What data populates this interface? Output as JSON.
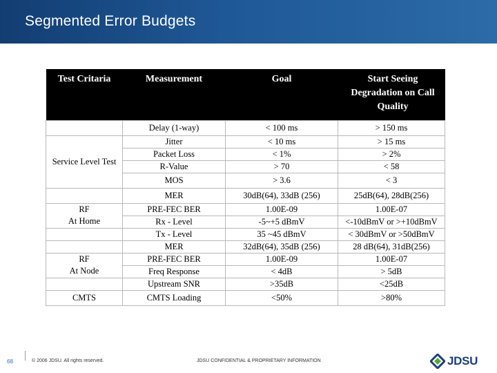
{
  "slide": {
    "title": "Segmented Error Budgets"
  },
  "table": {
    "headers": [
      "Test Critaria",
      "Measurement",
      "Goal",
      "Start Seeing Degradation on Call Quality"
    ],
    "groups": {
      "service_level_test": "Service Level Test",
      "rf_home_line1": "RF",
      "rf_home_line2": "At Home",
      "rf_node_line1": "RF",
      "rf_node_line2": "At Node",
      "cmts": "CMTS"
    },
    "rows": [
      {
        "measurement": "Delay (1-way)",
        "goal": "<  100 ms",
        "degradation": "> 150 ms"
      },
      {
        "measurement": "Jitter",
        "goal": "< 10 ms",
        "degradation": "> 15 ms"
      },
      {
        "measurement": "Packet Loss",
        "goal": "< 1%",
        "degradation": "> 2%"
      },
      {
        "measurement": "R-Value",
        "goal": "> 70",
        "degradation": "< 58"
      },
      {
        "measurement": "MOS",
        "goal": "> 3.6",
        "degradation": "< 3"
      },
      {
        "measurement": "MER",
        "goal": "30dB(64), 33dB (256)",
        "degradation": "25dB(64), 28dB(256)"
      },
      {
        "measurement": "PRE-FEC BER",
        "goal": "1.00E-09",
        "degradation": "1.00E-07"
      },
      {
        "measurement": "Rx - Level",
        "goal": "-5~+5 dBmV",
        "degradation": "<-10dBmV or >+10dBmV"
      },
      {
        "measurement": "Tx - Level",
        "goal": "35 ~45 dBmV",
        "degradation": "< 30dBmV or >50dBmV"
      },
      {
        "measurement": "MER",
        "goal": "32dB(64), 35dB (256)",
        "degradation": "28 dB(64), 31dB(256)"
      },
      {
        "measurement": "PRE-FEC BER",
        "goal": "1.00E-09",
        "degradation": "1.00E-07"
      },
      {
        "measurement": "Freq Response",
        "goal": "< 4dB",
        "degradation": "> 5dB"
      },
      {
        "measurement": "Upstream SNR",
        "goal": ">35dB",
        "degradation": "<25dB"
      },
      {
        "measurement": "CMTS Loading",
        "goal": "<50%",
        "degradation": ">80%"
      }
    ]
  },
  "footer": {
    "page_number": "68",
    "copyright": "© 2006 JDSU. All rights reserved.",
    "confidential": "JDSU CONFIDENTIAL & PROPRIETARY INFORMATION",
    "logo_text": "JDSU"
  },
  "colors": {
    "title_bar": "#1f5896",
    "header_bg": "#000000",
    "logo_blue": "#1b3f7a",
    "logo_green": "#5aa832"
  }
}
